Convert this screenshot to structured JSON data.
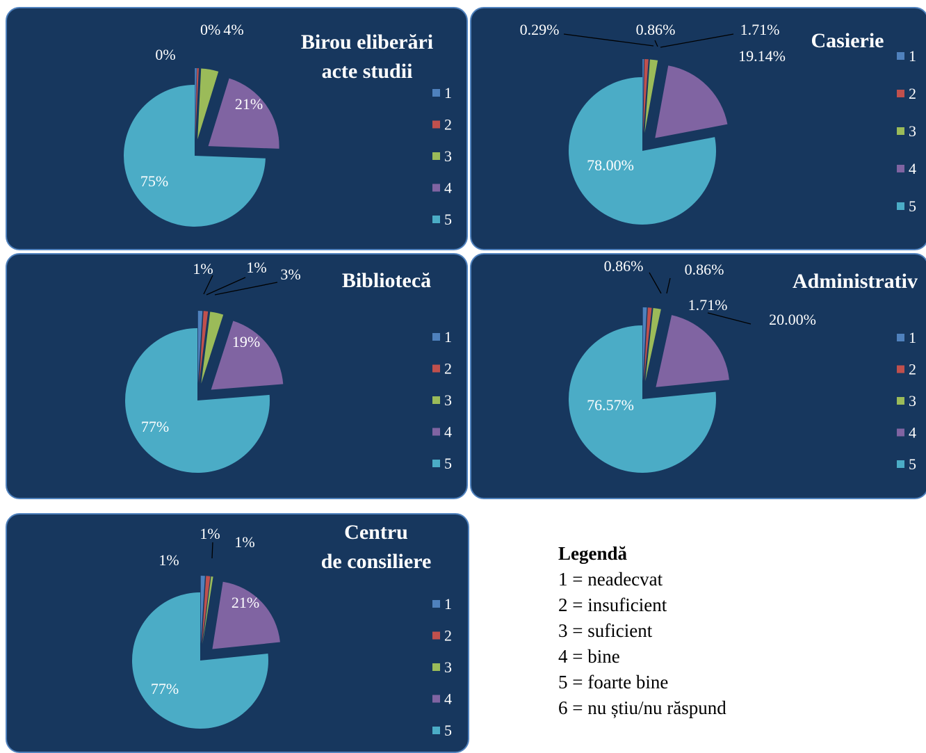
{
  "legend": {
    "title": "Legendă",
    "items": [
      "1 = neadecvat",
      "2 = insuficient",
      "3 = suficient",
      "4 = bine",
      "5 = foarte bine",
      "6 = nu știu/nu răspund"
    ]
  },
  "colors": {
    "panel_bg": "#17375e",
    "panel_border": "#4f81bd",
    "series": [
      "#4f81bd",
      "#c0504d",
      "#9bbb59",
      "#8064a2",
      "#4bacc6"
    ]
  },
  "chart_data": [
    {
      "type": "pie",
      "title": [
        "Birou eliberări",
        "acte studii"
      ],
      "categories": [
        "1",
        "2",
        "3",
        "4",
        "5"
      ],
      "values": [
        0.4,
        0.4,
        4,
        21,
        75
      ],
      "data_labels": [
        "0%",
        "0%",
        "4%",
        "21%",
        "75%"
      ],
      "exploded": true,
      "legend_position": "right"
    },
    {
      "type": "pie",
      "title": [
        "Casierie"
      ],
      "categories": [
        "1",
        "2",
        "3",
        "4",
        "5"
      ],
      "values": [
        0.29,
        0.86,
        1.71,
        19.14,
        78.0
      ],
      "data_labels": [
        "0.29%",
        "0.86%",
        "1.71%",
        "19.14%",
        "78.00%"
      ],
      "exploded": true,
      "legend_position": "right"
    },
    {
      "type": "pie",
      "title": [
        "Bibliotecă"
      ],
      "categories": [
        "1",
        "2",
        "3",
        "4",
        "5"
      ],
      "values": [
        1,
        1,
        3,
        19,
        77
      ],
      "data_labels": [
        "1%",
        "1%",
        "3%",
        "19%",
        "77%"
      ],
      "exploded": true,
      "legend_position": "right"
    },
    {
      "type": "pie",
      "title": [
        "Administrativ"
      ],
      "categories": [
        "1",
        "2",
        "3",
        "4",
        "5"
      ],
      "values": [
        0.86,
        0.86,
        1.71,
        20.0,
        76.57
      ],
      "data_labels": [
        "0.86%",
        "0.86%",
        "1.71%",
        "20.00%",
        "76.57%"
      ],
      "exploded": true,
      "legend_position": "right"
    },
    {
      "type": "pie",
      "title": [
        "Centru",
        "de consiliere"
      ],
      "categories": [
        "1",
        "2",
        "3",
        "4",
        "5"
      ],
      "values": [
        1,
        1,
        0.5,
        21,
        77
      ],
      "data_labels": [
        "1%",
        "1%",
        "1%",
        "21%",
        "77%"
      ],
      "exploded": true,
      "legend_position": "right"
    }
  ]
}
